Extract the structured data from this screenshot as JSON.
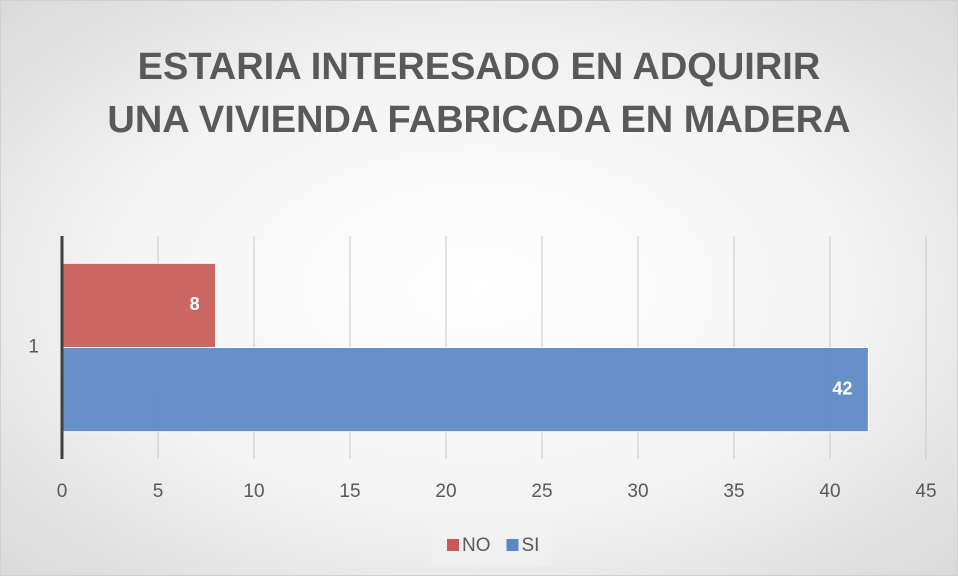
{
  "chart_data": {
    "type": "bar",
    "orientation": "horizontal",
    "title": "ESTARIA INTERESADO EN ADQUIRIR UNA VIVIENDA FABRICADA EN MADERA",
    "categories": [
      "1"
    ],
    "series": [
      {
        "name": "NO",
        "color": "#c55a58",
        "values": [
          8
        ]
      },
      {
        "name": "SI",
        "color": "#5b88c4",
        "values": [
          42
        ]
      }
    ],
    "xlim": [
      0,
      45
    ],
    "xticks": [
      0,
      5,
      10,
      15,
      20,
      25,
      30,
      35,
      40,
      45
    ],
    "grid": true,
    "legend": "bottom",
    "data_labels": true
  }
}
